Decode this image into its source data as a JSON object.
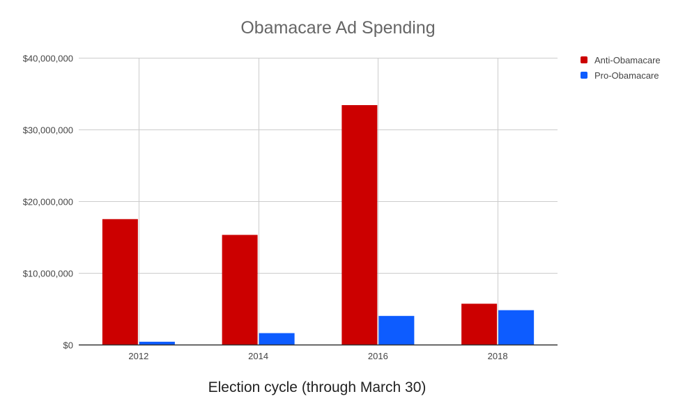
{
  "chart_data": {
    "type": "bar",
    "title": "Obamacare Ad Spending",
    "xlabel": "Election cycle (through March 30)",
    "ylabel": "",
    "categories": [
      "2012",
      "2014",
      "2016",
      "2018"
    ],
    "series": [
      {
        "name": "Anti-Obamacare",
        "color": "#cc0000",
        "values": [
          17500000,
          15300000,
          33400000,
          5700000
        ]
      },
      {
        "name": "Pro-Obamacare",
        "color": "#0d5cff",
        "values": [
          400000,
          1600000,
          4000000,
          4800000
        ]
      }
    ],
    "ylim": [
      0,
      40000000
    ],
    "yticks": [
      0,
      10000000,
      20000000,
      30000000,
      40000000
    ],
    "ytick_labels": [
      "$0",
      "$10,000,000",
      "$20,000,000",
      "$30,000,000",
      "$40,000,000"
    ],
    "grid": true,
    "legend_position": "top-right"
  }
}
